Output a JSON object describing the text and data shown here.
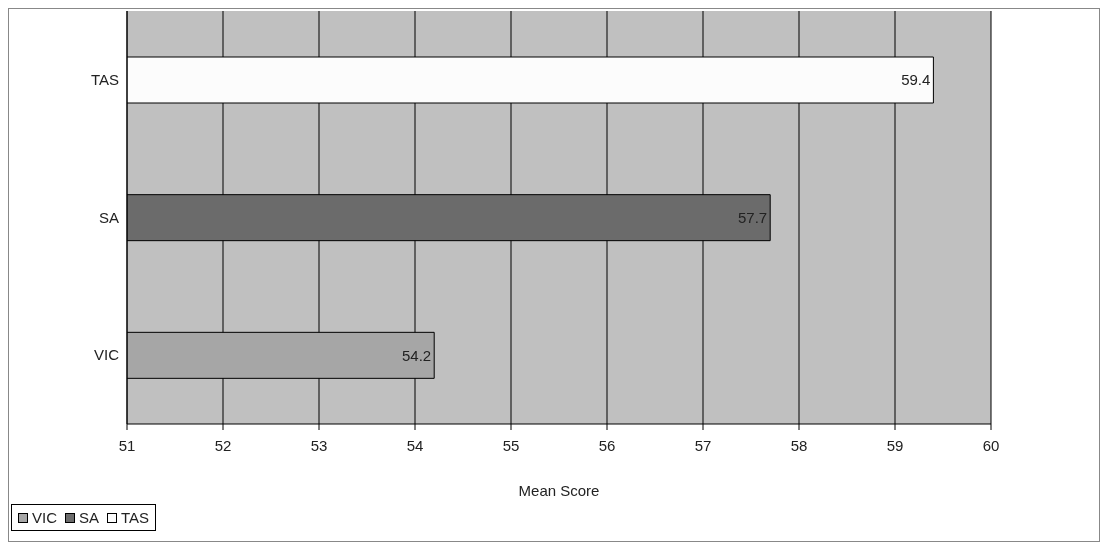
{
  "chart_data": {
    "type": "bar",
    "orientation": "horizontal",
    "stacked": true,
    "xlabel": "Mean Score",
    "categories": [
      "TAS",
      "SA",
      "VIC"
    ],
    "series": [
      {
        "name": "VIC",
        "color": "#a6a6a6",
        "values": [
          null,
          null,
          54.2
        ]
      },
      {
        "name": "SA",
        "color": "#6b6b6b",
        "values": [
          null,
          57.7,
          null
        ]
      },
      {
        "name": "TAS",
        "color": "#fcfcfc",
        "values": [
          59.4,
          null,
          null
        ]
      }
    ],
    "xlim": [
      51,
      60
    ],
    "xticks": [
      51,
      52,
      53,
      54,
      55,
      56,
      57,
      58,
      59,
      60
    ],
    "grid": "x",
    "legend": "bottom left",
    "data_labels": true
  }
}
